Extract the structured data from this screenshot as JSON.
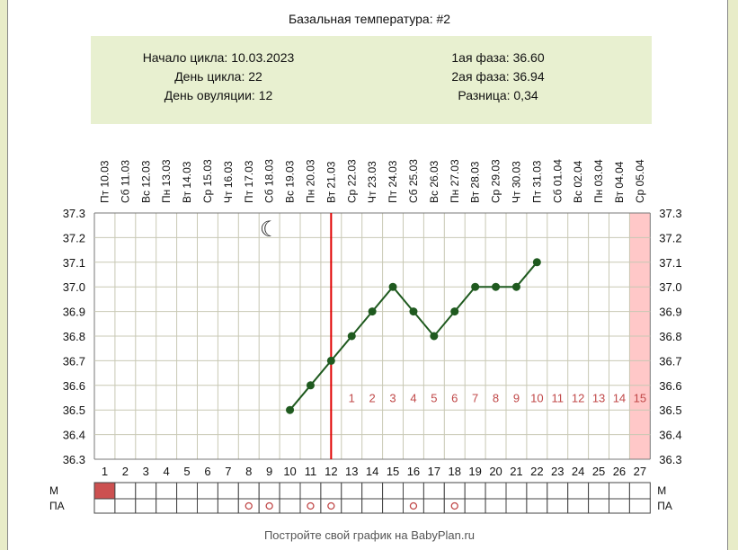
{
  "colors": {
    "page_bg": "#e8ecc8",
    "info_bg": "#e8f0d0",
    "grid": "#c8c8b4",
    "line": "#1f5a1f",
    "ovulation_line": "#e00000",
    "phase_number": "#c04848",
    "period_cell": "#cc5050",
    "future_day": "#ffc8c8"
  },
  "info": {
    "title": "Базальная температура: #2",
    "cycle_start": "Начало цикла: 10.03.2023",
    "cycle_day": "День цикла: 22",
    "ovulation_day": "День овуляции: 12",
    "phase1": "1ая фаза: 36.60",
    "phase2": "2ая фаза: 36.94",
    "difference": "Разница: 0,34"
  },
  "footer": "Постройте свой график на BabyPlan.ru",
  "rows": {
    "m_label": "М",
    "pa_label": "ПА",
    "pa_mark": "o"
  },
  "icons": {
    "moon": "moon-icon",
    "moon_char": "☾",
    "moon_day": 9
  },
  "chart_data": {
    "type": "line",
    "title": "Базальная температура: #2",
    "days": [
      1,
      2,
      3,
      4,
      5,
      6,
      7,
      8,
      9,
      10,
      11,
      12,
      13,
      14,
      15,
      16,
      17,
      18,
      19,
      20,
      21,
      22,
      23,
      24,
      25,
      26,
      27
    ],
    "dates": [
      "Пт 10.03",
      "Сб 11.03",
      "Вс 12.03",
      "Пн 13.03",
      "Вт 14.03",
      "Ср 15.03",
      "Чт 16.03",
      "Пт 17.03",
      "Сб 18.03",
      "Вс 19.03",
      "Пн 20.03",
      "Вт 21.03",
      "Ср 22.03",
      "Чт 23.03",
      "Пт 24.03",
      "Сб 25.03",
      "Вс 26.03",
      "Пн 27.03",
      "Вт 28.03",
      "Ср 29.03",
      "Чт 30.03",
      "Пт 31.03",
      "Сб 01.04",
      "Вс 02.04",
      "Пн 03.04",
      "Вт 04.04",
      "Ср 05.04"
    ],
    "series": [
      {
        "x": [
          10,
          11,
          12,
          13,
          14,
          15,
          16,
          17,
          18,
          19,
          20,
          21,
          22
        ],
        "values": [
          36.5,
          36.6,
          36.7,
          36.8,
          36.9,
          37.0,
          36.9,
          36.8,
          36.9,
          37.0,
          37.0,
          37.0,
          37.1
        ]
      }
    ],
    "ylim": [
      36.3,
      37.3
    ],
    "yticks": [
      "37.3",
      "37.2",
      "37.1",
      "37.0",
      "36.9",
      "36.8",
      "36.7",
      "36.6",
      "36.5",
      "36.4",
      "36.3"
    ],
    "ovulation_day": 12,
    "future_day": 27,
    "phase_numbers": [
      "1",
      "2",
      "3",
      "4",
      "5",
      "6",
      "7",
      "8",
      "9",
      "10",
      "11",
      "12",
      "13",
      "14",
      "15"
    ],
    "phase_numbers_start_day": 13,
    "phase_numbers_level": 36.55,
    "m_days": [
      1
    ],
    "pa_days": [
      8,
      9,
      11,
      12,
      16,
      18
    ],
    "grid": true
  }
}
